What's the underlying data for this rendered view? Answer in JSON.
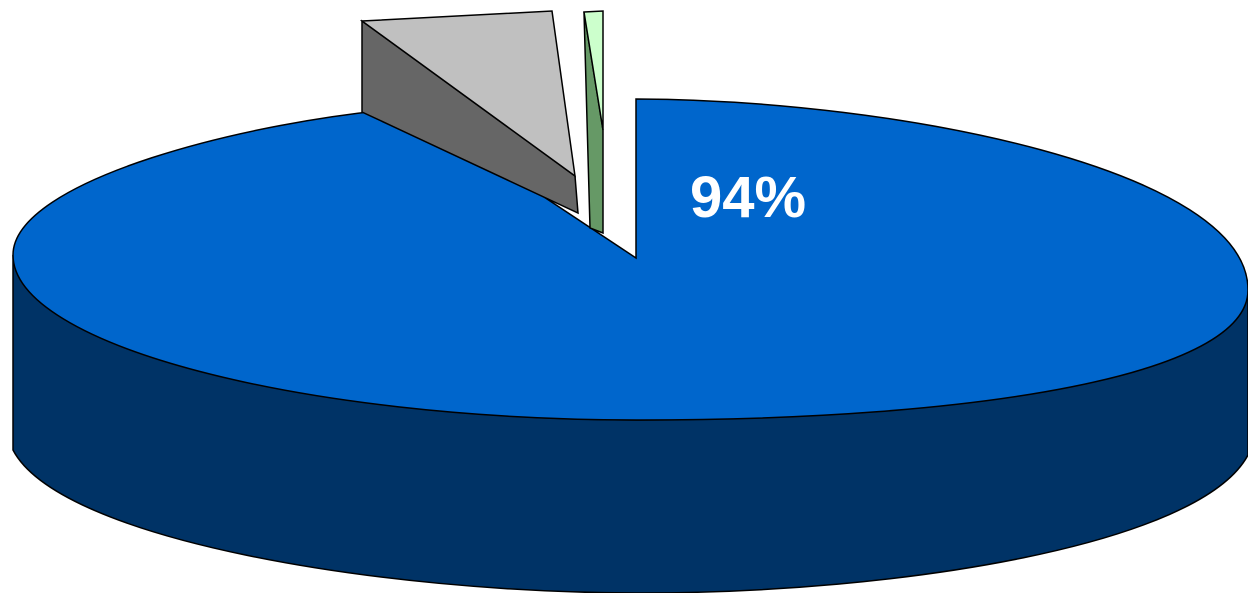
{
  "chart_data": {
    "type": "pie",
    "style": "3d-exploded",
    "slices": [
      {
        "value": 94,
        "label": "94%",
        "color": "#0066cc",
        "side_color": "#003366",
        "exploded": false
      },
      {
        "value": 5,
        "label": "",
        "color": "#c0c0c0",
        "side_color": "#666666",
        "exploded": true
      },
      {
        "value": 1,
        "label": "",
        "color": "#ccffcc",
        "side_color": "#669966",
        "exploded": true
      }
    ]
  }
}
